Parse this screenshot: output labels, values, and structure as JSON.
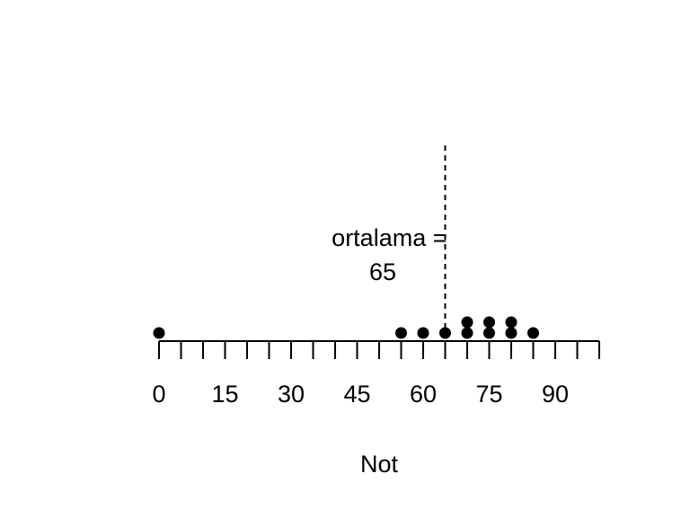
{
  "chart_data": {
    "type": "dot",
    "title": "",
    "xlabel": "Not",
    "ylabel": "",
    "xlim": [
      0,
      100
    ],
    "minor_tick_step": 5,
    "tick_labels": [
      "0",
      "15",
      "30",
      "45",
      "60",
      "75",
      "90"
    ],
    "tick_values": [
      0,
      15,
      30,
      45,
      60,
      75,
      90
    ],
    "values": [
      0,
      55,
      60,
      65,
      70,
      70,
      75,
      75,
      80,
      80,
      85
    ],
    "mean": 65,
    "annotation_lines": [
      "ortalama =",
      "65"
    ],
    "mark_color": "#000000"
  }
}
